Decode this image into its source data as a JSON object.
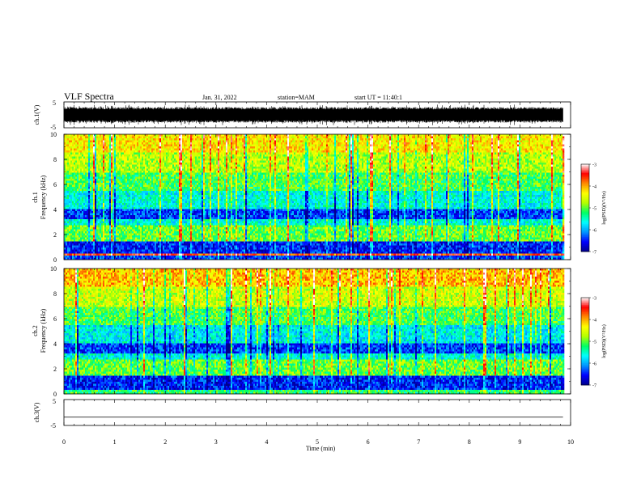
{
  "header": {
    "title": "VLF Spectra",
    "date": "Jan. 31, 2022",
    "station": "station=MAM",
    "start": "start UT = 11:40:1"
  },
  "colorbar": {
    "label": "log(PSD)(V²/Hz)",
    "ticks": [
      "-3",
      "-4",
      "-5",
      "-6",
      "-7"
    ],
    "colors": [
      "#00008c",
      "#0000ff",
      "#0096ff",
      "#00ffff",
      "#00ff64",
      "#b4ff00",
      "#ffff00",
      "#ff8c00",
      "#ff0000",
      "#ffffff"
    ]
  },
  "chart_data": [
    {
      "type": "line",
      "name": "ch1-waveform",
      "ylabel": "ch.1(V)",
      "ylim": [
        -5,
        5
      ],
      "yticks": [
        "5",
        "-5"
      ],
      "xlim": [
        0,
        10
      ],
      "amplitude_range": [
        -4,
        4
      ]
    },
    {
      "type": "heatmap",
      "name": "ch1-spectrogram",
      "ylabel": "ch.1\nFrequency (kHz)",
      "ylim": [
        0,
        10
      ],
      "yticks": [
        "0",
        "2",
        "4",
        "6",
        "8",
        "10"
      ],
      "xlim": [
        0,
        10
      ],
      "data_end_min": 9.85,
      "colorbar_range": [
        -7,
        -3
      ],
      "band_levels": [
        {
          "f_low": 0.0,
          "f_high": 0.4,
          "log_psd": -6.4
        },
        {
          "f_low": 0.4,
          "f_high": 0.55,
          "log_psd": -3.6
        },
        {
          "f_low": 0.55,
          "f_high": 1.5,
          "log_psd": -6.5
        },
        {
          "f_low": 1.5,
          "f_high": 2.8,
          "log_psd": -5.0
        },
        {
          "f_low": 2.8,
          "f_high": 3.3,
          "log_psd": -5.6
        },
        {
          "f_low": 3.3,
          "f_high": 4.0,
          "log_psd": -6.4
        },
        {
          "f_low": 4.0,
          "f_high": 5.5,
          "log_psd": -5.6
        },
        {
          "f_low": 5.5,
          "f_high": 7.0,
          "log_psd": -5.1
        },
        {
          "f_low": 7.0,
          "f_high": 8.5,
          "log_psd": -4.7
        },
        {
          "f_low": 8.5,
          "f_high": 10.0,
          "log_psd": -4.3
        }
      ]
    },
    {
      "type": "heatmap",
      "name": "ch2-spectrogram",
      "ylabel": "ch.2\nFrequency (kHz)",
      "ylim": [
        0,
        10
      ],
      "yticks": [
        "0",
        "2",
        "4",
        "6",
        "8",
        "10"
      ],
      "xlim": [
        0,
        10
      ],
      "data_end_min": 9.85,
      "colorbar_range": [
        -7,
        -3
      ],
      "band_levels": [
        {
          "f_low": 0.0,
          "f_high": 0.3,
          "log_psd": -5.2
        },
        {
          "f_low": 0.3,
          "f_high": 1.5,
          "log_psd": -6.5
        },
        {
          "f_low": 1.5,
          "f_high": 2.8,
          "log_psd": -5.0
        },
        {
          "f_low": 2.8,
          "f_high": 3.3,
          "log_psd": -5.6
        },
        {
          "f_low": 3.3,
          "f_high": 4.0,
          "log_psd": -6.4
        },
        {
          "f_low": 4.0,
          "f_high": 5.5,
          "log_psd": -5.7
        },
        {
          "f_low": 5.5,
          "f_high": 7.0,
          "log_psd": -5.1
        },
        {
          "f_low": 7.0,
          "f_high": 8.5,
          "log_psd": -4.6
        },
        {
          "f_low": 8.5,
          "f_high": 10.0,
          "log_psd": -4.1
        }
      ]
    },
    {
      "type": "line",
      "name": "ch3-waveform",
      "ylabel": "ch.3(V)",
      "ylim": [
        -5,
        5
      ],
      "yticks": [
        "5",
        "-5"
      ],
      "xlim": [
        0,
        10
      ],
      "xticks": [
        "0",
        "1",
        "2",
        "3",
        "4",
        "5",
        "6",
        "7",
        "8",
        "9",
        "10"
      ],
      "xlabel": "Time (min)",
      "x": [
        0,
        9.85
      ],
      "y": [
        -1.8,
        -1.8
      ]
    }
  ]
}
